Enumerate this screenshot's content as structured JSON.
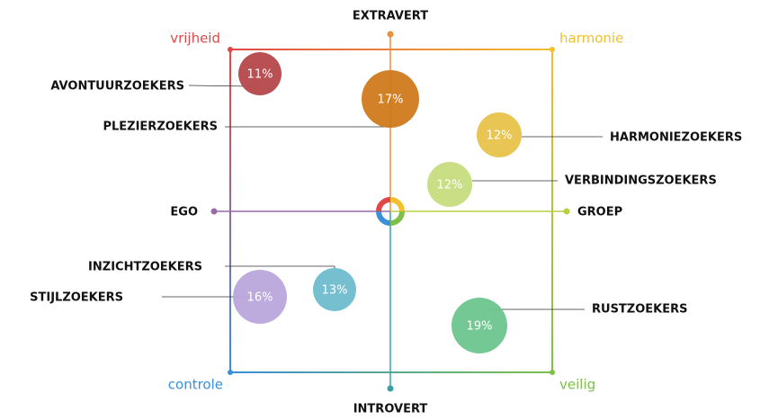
{
  "axes": {
    "top": "EXTRAVERT",
    "bottom": "INTROVERT",
    "left": "EGO",
    "right": "GROEP"
  },
  "corners": {
    "top_left": "vrijheid",
    "top_right": "harmonie",
    "bottom_left": "controle",
    "bottom_right": "veilig"
  },
  "nodes": [
    {
      "label": "AVONTUURZOEKERS",
      "share": "11%",
      "color": "#b5474b"
    },
    {
      "label": "PLEZIERZOEKERS",
      "share": "17%",
      "color": "#d07a1c"
    },
    {
      "label": "HARMONIEZOEKERS",
      "share": "12%",
      "color": "#e8c24a"
    },
    {
      "label": "VERBINDINGSZOEKERS",
      "share": "12%",
      "color": "#c7dc7e"
    },
    {
      "label": "INZICHTZOEKERS",
      "share": "13%",
      "color": "#6fbccf"
    },
    {
      "label": "STIJLZOEKERS",
      "share": "16%",
      "color": "#b9a6dc"
    },
    {
      "label": "RUSTZOEKERS",
      "share": "19%",
      "color": "#6dc58d"
    }
  ]
}
